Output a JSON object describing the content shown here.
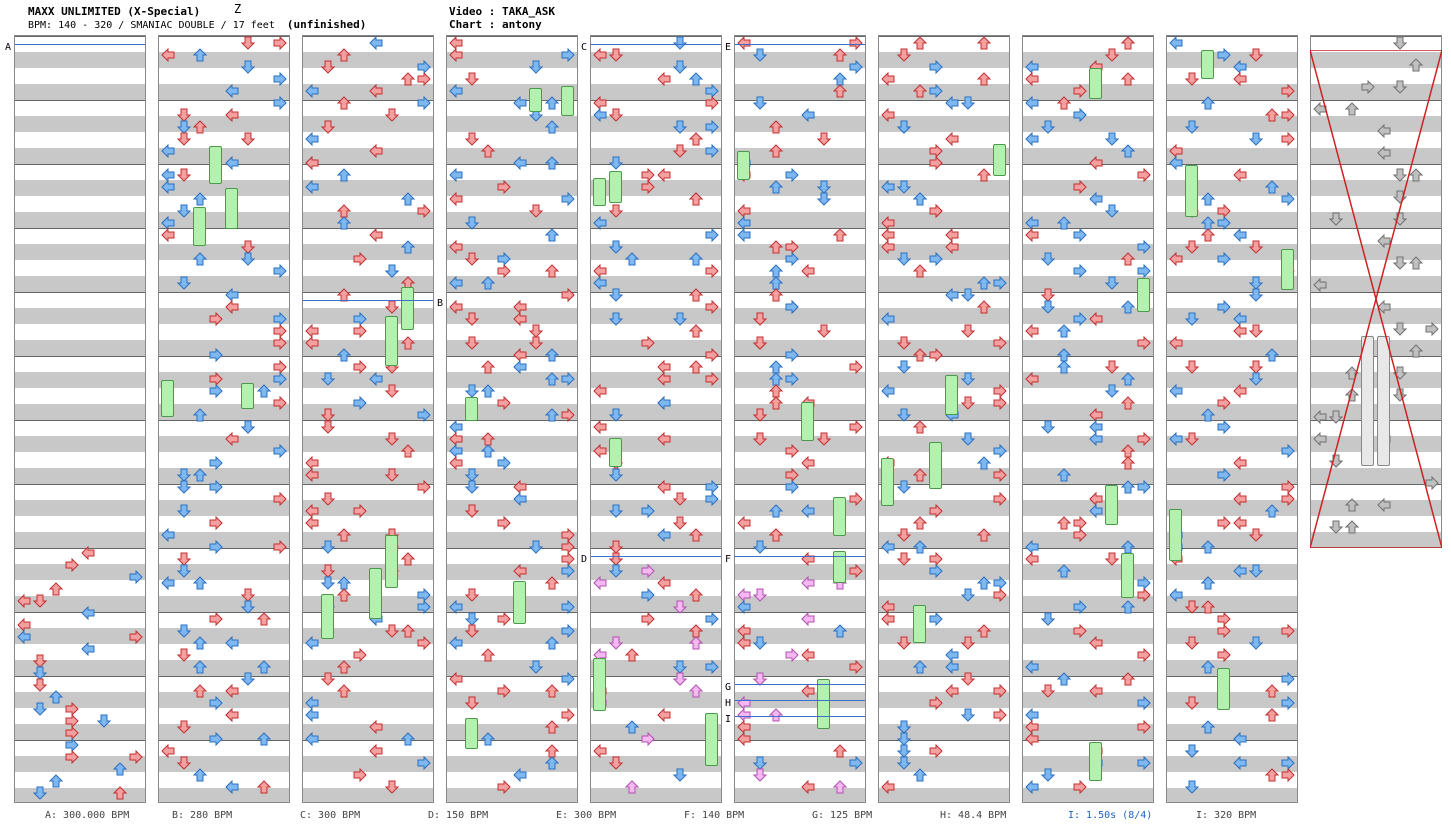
{
  "header": {
    "song_title": "MAXX UNLIMITED (X-Special)",
    "difficulty_mark": "Z",
    "info": "BPM: 140 - 320 / SMANIAC DOUBLE / 17 feet  ",
    "status": "(unfinished)",
    "video_label": "Video : TAKA_ASK",
    "chart_label": "Chart : antony"
  },
  "section_letters": [
    "A",
    "B",
    "C",
    "D",
    "E",
    "F",
    "G",
    "H",
    "I"
  ],
  "footer": [
    {
      "text": "A: 300.000 BPM",
      "highlight": false
    },
    {
      "text": "B: 280 BPM",
      "highlight": false
    },
    {
      "text": "C: 300 BPM",
      "highlight": false
    },
    {
      "text": "D: 150 BPM",
      "highlight": false
    },
    {
      "text": "E: 300 BPM",
      "highlight": false
    },
    {
      "text": "F: 140 BPM",
      "highlight": false
    },
    {
      "text": "G: 125 BPM",
      "highlight": false
    },
    {
      "text": "H: 48.4 BPM",
      "highlight": false
    },
    {
      "text": "I: 1.50s (8/4)",
      "highlight": true
    },
    {
      "text": "I: 320 BPM",
      "highlight": false
    }
  ],
  "colors": {
    "red_arrow": "#f5a0a0",
    "blue_arrow": "#7fb8f0",
    "pink_arrow": "#f5b8f0",
    "green_hold": "#b6f0b0",
    "gimmick_line": "#3a6fd0",
    "cross": "#cc2222",
    "stripe": "#c8c8c8"
  },
  "icons": {
    "red": "red-arrow-icon",
    "blue": "blue-arrow-icon",
    "pink": "pink-arrow-icon",
    "gray": "gray-arrow-icon",
    "hold": "freeze-arrow-icon"
  }
}
